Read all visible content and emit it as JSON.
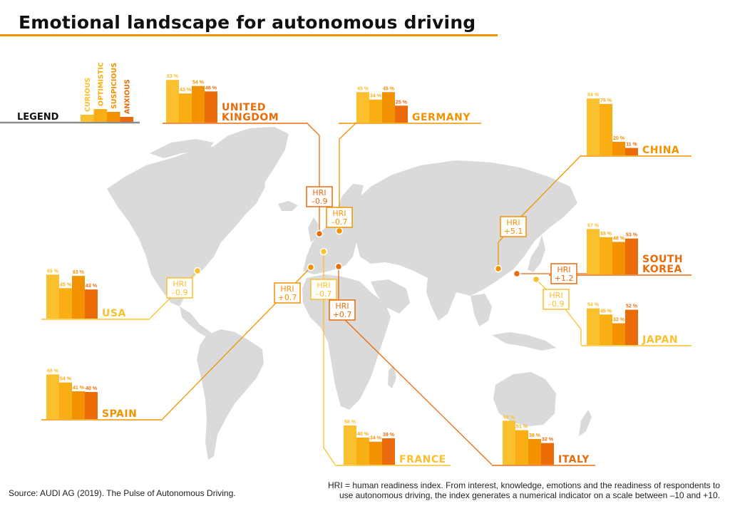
{
  "header": {
    "title": "Emotional landscape for autonomous driving"
  },
  "footer": {
    "source": "Source: AUDI AG (2019). The Pulse of Autonomous Driving.",
    "note_line1": "HRI = human readiness index. From interest, knowledge, emotions and the readiness of respondents to",
    "note_line2": "use autonomous driving, the index generates a numerical indicator on a scale between –10 and +10."
  },
  "colors": {
    "curious": "#FBC02D",
    "optimistic": "#F9AE14",
    "suspicious": "#F39200",
    "anxious": "#E96B0A",
    "map": "#DADADA",
    "legend_rule": "#8C8C8C"
  },
  "chart_data": {
    "type": "bar",
    "title": "Emotional landscape for autonomous driving",
    "unit": "%",
    "legend": {
      "label": "LEGEND",
      "placement": "top-left",
      "entries": [
        "CURIOUS",
        "OPTIMISTIC",
        "SUSPICIOUS",
        "ANXIOUS"
      ]
    },
    "categories": [
      "CURIOUS",
      "OPTIMISTIC",
      "SUSPICIOUS",
      "ANXIOUS"
    ],
    "countries": [
      {
        "name": "UNITED KINGDOM",
        "lines": [
          "UNITED",
          "KINGDOM"
        ],
        "values": [
          63,
          43,
          54,
          46
        ],
        "hri": "–0.9",
        "hri_label": "HRI",
        "accent": "anxious"
      },
      {
        "name": "GERMANY",
        "lines": [
          "GERMANY"
        ],
        "values": [
          45,
          34,
          45,
          25
        ],
        "hri": "–0.7",
        "hri_label": "HRI",
        "accent": "suspicious"
      },
      {
        "name": "CHINA",
        "lines": [
          "CHINA"
        ],
        "values": [
          84,
          76,
          20,
          11
        ],
        "hri": "+5.1",
        "hri_label": "HRI",
        "accent": "suspicious"
      },
      {
        "name": "SOUTH KOREA",
        "lines": [
          "SOUTH",
          "KOREA"
        ],
        "values": [
          67,
          55,
          48,
          53
        ],
        "hri": "+1.2",
        "hri_label": "HRI",
        "accent": "anxious"
      },
      {
        "name": "JAPAN",
        "lines": [
          "JAPAN"
        ],
        "values": [
          54,
          45,
          32,
          52
        ],
        "hri": "–0.9",
        "hri_label": "HRI",
        "accent": "curious"
      },
      {
        "name": "USA",
        "lines": [
          "USA"
        ],
        "values": [
          65,
          45,
          63,
          43
        ],
        "hri": "–0.9",
        "hri_label": "HRI",
        "accent": "curious"
      },
      {
        "name": "SPAIN",
        "lines": [
          "SPAIN"
        ],
        "values": [
          66,
          54,
          41,
          40
        ],
        "hri": "+0.7",
        "hri_label": "HRI",
        "accent": "suspicious"
      },
      {
        "name": "FRANCE",
        "lines": [
          "FRANCE"
        ],
        "values": [
          58,
          40,
          34,
          39
        ],
        "hri": "–0.7",
        "hri_label": "HRI",
        "accent": "curious"
      },
      {
        "name": "ITALY",
        "lines": [
          "ITALY"
        ],
        "values": [
          65,
          51,
          38,
          32
        ],
        "hri": "+0.7",
        "hri_label": "HRI",
        "accent": "anxious"
      }
    ]
  }
}
